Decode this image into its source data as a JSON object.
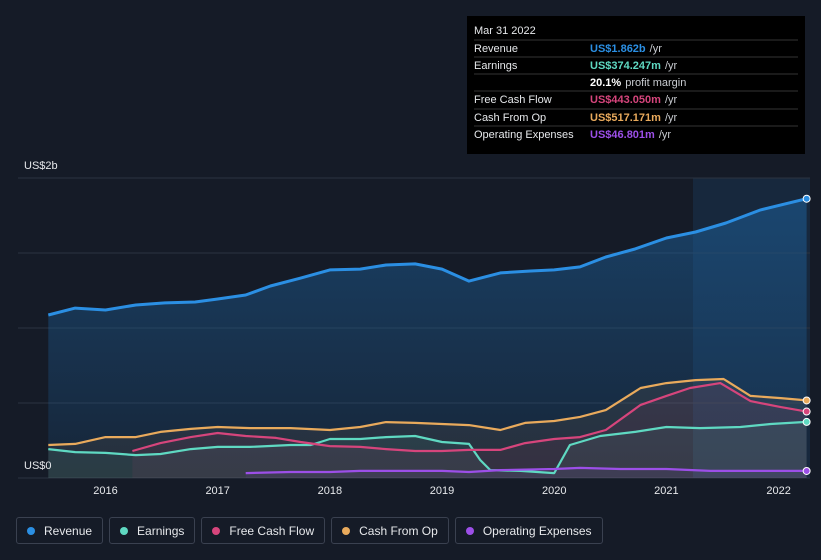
{
  "chart_data": {
    "type": "line",
    "xlim": [
      2015.22,
      2022.28
    ],
    "xticks": [
      2016,
      2017,
      2018,
      2019,
      2020,
      2021,
      2022
    ],
    "ylim": [
      0,
      2
    ],
    "yticks": [
      {
        "value": 0,
        "label": "US$0"
      },
      {
        "value": 0.5,
        "label": null
      },
      {
        "value": 1,
        "label": null
      },
      {
        "value": 1.5,
        "label": null
      },
      {
        "value": 2,
        "label": "US$2b"
      }
    ],
    "grid": true,
    "series": [
      {
        "name": "Revenue",
        "color": "#2b8fe3",
        "x": [
          2015.49,
          2015.73,
          2016,
          2016.27,
          2016.53,
          2016.8,
          2017,
          2017.25,
          2017.47,
          2017.74,
          2018,
          2018.27,
          2018.5,
          2018.76,
          2019,
          2019.24,
          2019.52,
          2019.79,
          2020,
          2020.23,
          2020.46,
          2020.72,
          2021,
          2021.26,
          2021.53,
          2021.84,
          2022.25
        ],
        "values": [
          1.087,
          1.133,
          1.12,
          1.153,
          1.167,
          1.173,
          1.193,
          1.22,
          1.28,
          1.333,
          1.387,
          1.393,
          1.42,
          1.427,
          1.393,
          1.313,
          1.367,
          1.38,
          1.387,
          1.407,
          1.473,
          1.527,
          1.6,
          1.64,
          1.7,
          1.787,
          1.862
        ]
      },
      {
        "name": "Earnings",
        "color": "#5fd9c2",
        "x": [
          2015.49,
          2015.73,
          2016,
          2016.27,
          2016.49,
          2016.76,
          2017,
          2017.29,
          2017.65,
          2017.83,
          2018,
          2018.27,
          2018.5,
          2018.76,
          2019,
          2019.24,
          2019.34,
          2019.43,
          2019.7,
          2020,
          2020.14,
          2020.41,
          2020.72,
          2021,
          2021.3,
          2021.66,
          2021.93,
          2022.25
        ],
        "values": [
          0.193,
          0.173,
          0.167,
          0.153,
          0.16,
          0.193,
          0.207,
          0.207,
          0.22,
          0.22,
          0.26,
          0.26,
          0.273,
          0.28,
          0.24,
          0.227,
          0.12,
          0.053,
          0.047,
          0.033,
          0.22,
          0.28,
          0.307,
          0.34,
          0.333,
          0.34,
          0.36,
          0.374
        ]
      },
      {
        "name": "Free Cash Flow",
        "color": "#d6457c",
        "x": [
          2016.24,
          2016.49,
          2016.76,
          2017,
          2017.25,
          2017.52,
          2017.74,
          2018,
          2018.27,
          2018.5,
          2018.76,
          2019,
          2019.24,
          2019.52,
          2019.74,
          2020,
          2020.23,
          2020.46,
          2020.77,
          2021,
          2021.21,
          2021.48,
          2021.75,
          2022.02,
          2022.25
        ],
        "values": [
          0.18,
          0.233,
          0.273,
          0.3,
          0.28,
          0.267,
          0.24,
          0.213,
          0.207,
          0.193,
          0.18,
          0.18,
          0.187,
          0.187,
          0.233,
          0.26,
          0.273,
          0.32,
          0.487,
          0.547,
          0.6,
          0.633,
          0.513,
          0.473,
          0.443
        ]
      },
      {
        "name": "Cash From Op",
        "color": "#e9aa5c",
        "x": [
          2015.49,
          2015.73,
          2016,
          2016.27,
          2016.49,
          2016.76,
          2017,
          2017.29,
          2017.65,
          2018,
          2018.27,
          2018.5,
          2018.76,
          2019,
          2019.24,
          2019.52,
          2019.74,
          2020,
          2020.23,
          2020.46,
          2020.77,
          2021,
          2021.26,
          2021.51,
          2021.75,
          2022.02,
          2022.25
        ],
        "values": [
          0.22,
          0.227,
          0.273,
          0.273,
          0.307,
          0.327,
          0.34,
          0.333,
          0.333,
          0.32,
          0.34,
          0.373,
          0.367,
          0.36,
          0.353,
          0.32,
          0.367,
          0.38,
          0.407,
          0.453,
          0.6,
          0.633,
          0.653,
          0.66,
          0.547,
          0.533,
          0.517
        ]
      },
      {
        "name": "Operating Expenses",
        "color": "#9c4fe8",
        "x": [
          2017.25,
          2017.65,
          2018,
          2018.27,
          2019,
          2019.24,
          2019.52,
          2020,
          2020.23,
          2020.59,
          2021,
          2021.39,
          2021.84,
          2022.25
        ],
        "values": [
          0.033,
          0.04,
          0.04,
          0.047,
          0.047,
          0.04,
          0.053,
          0.06,
          0.067,
          0.06,
          0.06,
          0.047,
          0.047,
          0.047
        ]
      }
    ],
    "tooltip": {
      "date": "Mar 31 2022",
      "rows": [
        {
          "label": "Revenue",
          "value": "US$1.862b",
          "unit": "/yr"
        },
        {
          "label": "Earnings",
          "value": "US$374.247m",
          "unit": "/yr"
        },
        {
          "label": "Free Cash Flow",
          "value": "US$443.050m",
          "unit": "/yr"
        },
        {
          "label": "Cash From Op",
          "value": "US$517.171m",
          "unit": "/yr"
        },
        {
          "label": "Operating Expenses",
          "value": "US$46.801m",
          "unit": "/yr"
        }
      ],
      "margin": {
        "value": "20.1%",
        "label": "profit margin"
      }
    }
  }
}
